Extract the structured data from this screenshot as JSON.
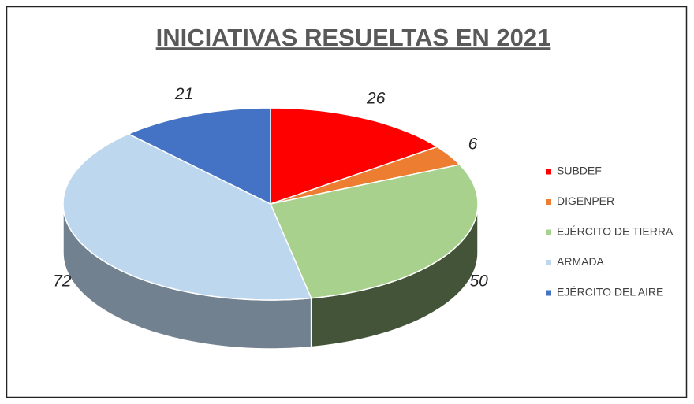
{
  "chart_data": {
    "type": "pie",
    "title": "INICIATIVAS RESUELTAS EN 2021",
    "categories": [
      "SUBDEF",
      "DIGENPER",
      "EJÉRCITO DE TIERRA",
      "ARMADA",
      "EJÉRCITO DEL AIRE"
    ],
    "values": [
      26,
      6,
      50,
      72,
      21
    ],
    "colors": [
      "#ff0000",
      "#ed7d31",
      "#a9d18e",
      "#bdd7ee",
      "#4472c4"
    ],
    "legend": "right"
  }
}
